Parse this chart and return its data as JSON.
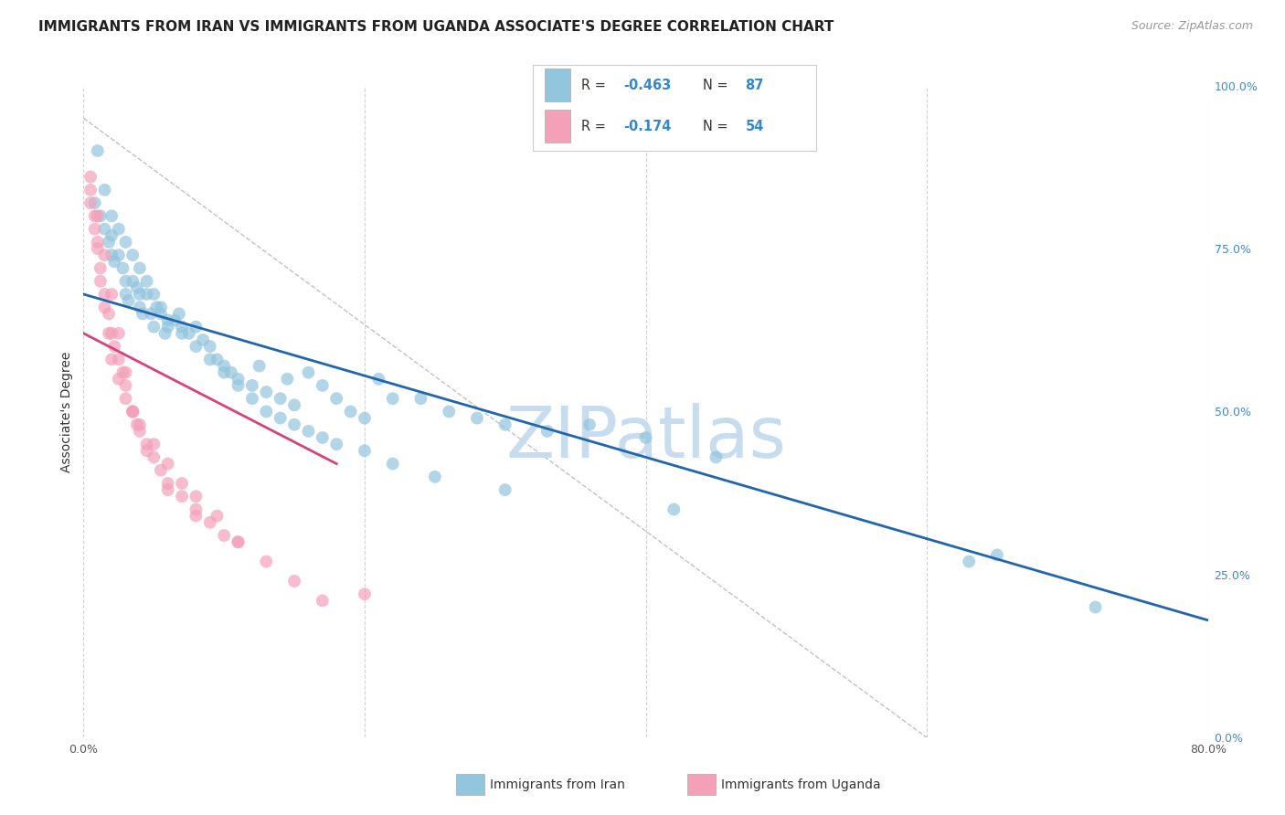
{
  "title": "IMMIGRANTS FROM IRAN VS IMMIGRANTS FROM UGANDA ASSOCIATE'S DEGREE CORRELATION CHART",
  "source": "Source: ZipAtlas.com",
  "ylabel": "Associate's Degree",
  "x_min": 0.0,
  "x_max": 80.0,
  "y_min": 0.0,
  "y_max": 100.0,
  "y_ticks_right": [
    0.0,
    25.0,
    50.0,
    75.0,
    100.0
  ],
  "y_tick_labels_right": [
    "0.0%",
    "25.0%",
    "50.0%",
    "75.0%",
    "100.0%"
  ],
  "iran_R": -0.463,
  "iran_N": 87,
  "uganda_R": -0.174,
  "uganda_N": 54,
  "iran_color": "#92C5DE",
  "uganda_color": "#F4A0B8",
  "iran_line_color": "#2166AC",
  "uganda_line_color": "#D4437C",
  "watermark": "ZIPatlas",
  "watermark_color": "#C8DCEF",
  "legend_label_iran": "Immigrants from Iran",
  "legend_label_uganda": "Immigrants from Uganda",
  "iran_scatter_x": [
    0.8,
    1.2,
    1.5,
    1.8,
    2.0,
    2.0,
    2.2,
    2.5,
    2.8,
    3.0,
    3.0,
    3.2,
    3.5,
    3.8,
    4.0,
    4.0,
    4.2,
    4.5,
    4.8,
    5.0,
    5.2,
    5.5,
    5.8,
    6.0,
    6.5,
    6.8,
    7.0,
    7.5,
    8.0,
    8.5,
    9.0,
    9.5,
    10.0,
    10.5,
    11.0,
    12.0,
    12.5,
    13.0,
    14.0,
    14.5,
    15.0,
    16.0,
    17.0,
    18.0,
    19.0,
    20.0,
    21.0,
    22.0,
    24.0,
    26.0,
    28.0,
    30.0,
    33.0,
    36.0,
    40.0,
    45.0,
    65.0,
    1.0,
    1.5,
    2.0,
    2.5,
    3.0,
    3.5,
    4.0,
    4.5,
    5.0,
    5.5,
    6.0,
    7.0,
    8.0,
    9.0,
    10.0,
    11.0,
    12.0,
    13.0,
    14.0,
    15.0,
    16.0,
    17.0,
    18.0,
    20.0,
    22.0,
    25.0,
    30.0,
    42.0,
    63.0,
    72.0
  ],
  "iran_scatter_y": [
    82,
    80,
    78,
    76,
    74,
    77,
    73,
    74,
    72,
    70,
    68,
    67,
    70,
    69,
    68,
    66,
    65,
    68,
    65,
    63,
    66,
    65,
    62,
    63,
    64,
    65,
    63,
    62,
    63,
    61,
    60,
    58,
    57,
    56,
    55,
    54,
    57,
    53,
    52,
    55,
    51,
    56,
    54,
    52,
    50,
    49,
    55,
    52,
    52,
    50,
    49,
    48,
    47,
    48,
    46,
    43,
    28,
    90,
    84,
    80,
    78,
    76,
    74,
    72,
    70,
    68,
    66,
    64,
    62,
    60,
    58,
    56,
    54,
    52,
    50,
    49,
    48,
    47,
    46,
    45,
    44,
    42,
    40,
    38,
    35,
    27,
    20
  ],
  "uganda_scatter_x": [
    0.5,
    0.8,
    1.0,
    1.2,
    1.5,
    1.8,
    2.0,
    2.2,
    2.5,
    2.8,
    3.0,
    3.5,
    3.8,
    4.0,
    4.5,
    5.0,
    5.5,
    6.0,
    7.0,
    8.0,
    9.0,
    10.0,
    11.0,
    0.5,
    0.8,
    1.0,
    1.2,
    1.5,
    1.8,
    2.0,
    2.5,
    3.0,
    3.5,
    4.0,
    5.0,
    6.0,
    7.0,
    8.0,
    9.5,
    11.0,
    13.0,
    15.0,
    17.0,
    0.5,
    1.0,
    1.5,
    2.0,
    2.5,
    3.0,
    3.5,
    4.5,
    6.0,
    8.0,
    20.0
  ],
  "uganda_scatter_y": [
    82,
    78,
    75,
    72,
    68,
    65,
    62,
    60,
    58,
    56,
    54,
    50,
    48,
    47,
    45,
    43,
    41,
    39,
    37,
    35,
    33,
    31,
    30,
    84,
    80,
    76,
    70,
    66,
    62,
    58,
    55,
    52,
    50,
    48,
    45,
    42,
    39,
    37,
    34,
    30,
    27,
    24,
    21,
    86,
    80,
    74,
    68,
    62,
    56,
    50,
    44,
    38,
    34,
    22
  ],
  "iran_line_x0": 0.0,
  "iran_line_y0": 68.0,
  "iran_line_x1": 80.0,
  "iran_line_y1": 18.0,
  "uganda_line_x0": 0.0,
  "uganda_line_y0": 62.0,
  "uganda_line_x1": 18.0,
  "uganda_line_y1": 42.0,
  "ref_line_x0": 0.0,
  "ref_line_y0": 95.0,
  "ref_line_x1": 60.0,
  "ref_line_y1": 0.0,
  "bg_color": "#FFFFFF",
  "grid_color": "#CCCCCC",
  "title_fontsize": 11,
  "axis_label_fontsize": 10,
  "tick_fontsize": 9,
  "legend_fontsize": 10,
  "source_fontsize": 9
}
